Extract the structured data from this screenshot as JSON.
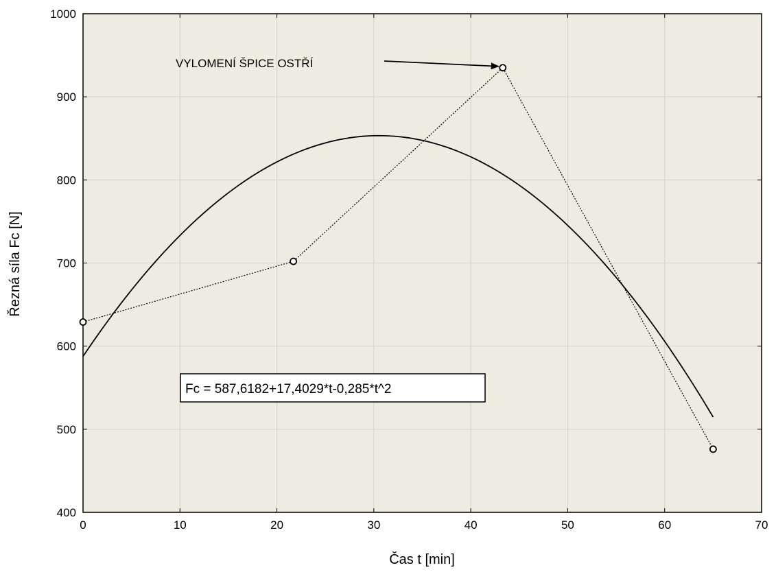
{
  "chart_data": {
    "type": "scatter",
    "title": "",
    "xlabel": "Čas t [min]",
    "ylabel": "Řezná síla Fc [N]",
    "xlim": [
      0,
      70
    ],
    "ylim": [
      400,
      1000
    ],
    "x_ticks": [
      0,
      10,
      20,
      30,
      40,
      50,
      60,
      70
    ],
    "y_ticks": [
      400,
      500,
      600,
      700,
      800,
      900,
      1000
    ],
    "grid": true,
    "legend": "none",
    "points": [
      {
        "x": 0,
        "y": 629
      },
      {
        "x": 21.7,
        "y": 702
      },
      {
        "x": 43.3,
        "y": 935
      },
      {
        "x": 65,
        "y": 476
      }
    ],
    "fit": {
      "label": "Fc = 587,6182+17,4029*t-0,285*t^2",
      "a": 587.6182,
      "b": 17.4029,
      "c": -0.285,
      "x_range": [
        0,
        65
      ]
    },
    "annotation": {
      "text": "VYLOMENÍ ŠPICE OSTŘÍ",
      "target_point_index": 2
    },
    "colors": {
      "plot_background": "#eeebe1",
      "grid": "#d6d3ca",
      "line": "#000000"
    }
  }
}
